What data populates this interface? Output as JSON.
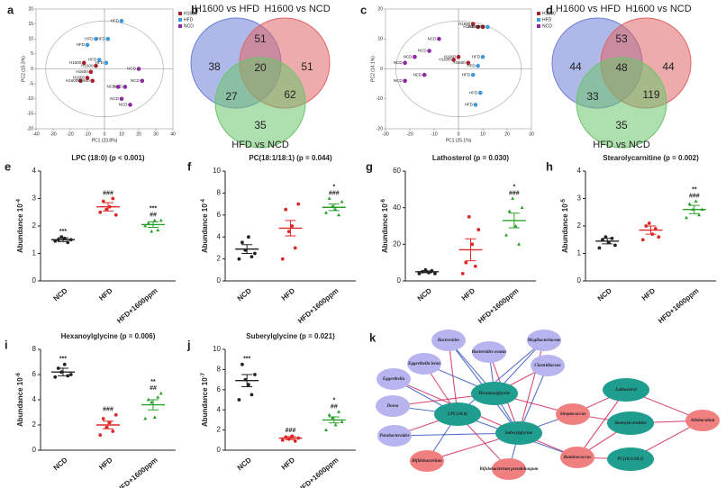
{
  "panel_labels": [
    "a",
    "b",
    "c",
    "d",
    "e",
    "f",
    "g",
    "h",
    "i",
    "j",
    "k"
  ],
  "chart_data": [
    {
      "type": "scatter",
      "xlabel": "PC1 (23.8%)",
      "ylabel": "PC2 (15.3%)",
      "xlim": [
        -40,
        40
      ],
      "ylim": [
        -20,
        20
      ],
      "xticks": [
        -40,
        -30,
        -20,
        -10,
        0,
        10,
        20,
        30,
        40
      ],
      "yticks": [
        -20,
        -15,
        -10,
        -5,
        0,
        5,
        10,
        15,
        20
      ],
      "series": [
        {
          "name": "H1600",
          "color": "#a8202a",
          "x": [
            -12,
            -8,
            -10,
            -14,
            -7,
            -5
          ],
          "values": [
            2,
            -1,
            -3,
            -4,
            -4,
            1
          ]
        },
        {
          "name": "HFD",
          "color": "#3b9ad9",
          "x": [
            -10,
            -5,
            2,
            10,
            -3,
            1
          ],
          "values": [
            8,
            10,
            10,
            16,
            3,
            2
          ]
        },
        {
          "name": "NCD",
          "color": "#8a2a9e",
          "x": [
            20,
            22,
            12,
            8,
            10,
            15
          ],
          "values": [
            0,
            -4,
            -6,
            -6,
            -10,
            -12
          ]
        }
      ]
    },
    {
      "type": "scatter",
      "xlabel": "PC1 (25.1%)",
      "ylabel": "PC2 (14.1%)",
      "xlim": [
        -30,
        30
      ],
      "ylim": [
        -20,
        20
      ],
      "xticks": [
        -30,
        -20,
        -10,
        0,
        10,
        20,
        30
      ],
      "yticks": [
        -20,
        -10,
        0,
        10,
        20
      ],
      "series": [
        {
          "name": "H1600",
          "color": "#a8202a",
          "x": [
            6,
            8,
            10,
            0,
            -2,
            4
          ],
          "values": [
            15,
            14,
            14,
            4,
            3,
            2
          ]
        },
        {
          "name": "HFD",
          "color": "#3b9ad9",
          "x": [
            12,
            10,
            8,
            6,
            9,
            7
          ],
          "values": [
            14,
            4,
            1,
            -2,
            -8,
            -12
          ]
        },
        {
          "name": "NCD",
          "color": "#8a2a9e",
          "x": [
            -8,
            -12,
            -18,
            -22,
            -14,
            -22
          ],
          "values": [
            10,
            6,
            4,
            2,
            -2,
            -4
          ]
        }
      ]
    },
    {
      "type": "dot",
      "title": "LPC (18:0) (p < 0.001)",
      "ylabel": "Abundance 10",
      "ylabel_exp": "-4",
      "categories": [
        "NCD",
        "HFD",
        "HFD+1600ppm"
      ],
      "colors": [
        "#222222",
        "#e02828",
        "#2ca02c"
      ],
      "ylim": [
        0,
        4
      ],
      "yticks": [
        0,
        1,
        2,
        3,
        4
      ],
      "means": [
        1.5,
        2.7,
        2.05
      ],
      "errors": [
        0.07,
        0.15,
        0.1
      ],
      "points": [
        [
          1.45,
          1.5,
          1.6,
          1.55,
          1.4,
          1.5
        ],
        [
          2.5,
          2.9,
          2.6,
          2.7,
          3.0,
          2.4
        ],
        [
          2.0,
          2.1,
          1.8,
          2.2,
          1.85,
          2.2
        ]
      ],
      "annotations": [
        [
          {
            "text": "***",
            "color": "#e02828"
          }
        ],
        [
          {
            "text": "###",
            "color": "#222222"
          }
        ],
        [
          {
            "text": "***",
            "color": "#e02828"
          },
          {
            "text": "##",
            "color": "#222222"
          }
        ]
      ]
    },
    {
      "type": "dot",
      "title": "PC(18:1/18:1) (p = 0.044)",
      "ylabel": "Abundance 10",
      "ylabel_exp": "-4",
      "categories": [
        "NCD",
        "HFD",
        "HFD+1600ppm"
      ],
      "colors": [
        "#222222",
        "#e02828",
        "#2ca02c"
      ],
      "ylim": [
        0,
        10
      ],
      "yticks": [
        0,
        2,
        4,
        6,
        8,
        10
      ],
      "means": [
        2.9,
        4.8,
        6.7
      ],
      "errors": [
        0.4,
        0.7,
        0.3
      ],
      "points": [
        [
          2.0,
          3.5,
          2.8,
          4.0,
          2.2,
          2.5
        ],
        [
          2.0,
          6.5,
          4.5,
          5.0,
          3.0,
          7.0
        ],
        [
          6.2,
          7.5,
          6.8,
          6.5,
          6.0,
          7.2
        ]
      ],
      "annotations": [
        [],
        [],
        [
          {
            "text": "*",
            "color": "#e02828"
          },
          {
            "text": "###",
            "color": "#222222"
          }
        ]
      ]
    },
    {
      "type": "dot",
      "title": "Lathosterol (p = 0.030)",
      "ylabel": "Abundance 10",
      "ylabel_exp": "-6",
      "categories": [
        "NCD",
        "HFD",
        "HFD+1600ppm"
      ],
      "colors": [
        "#222222",
        "#e02828",
        "#2ca02c"
      ],
      "ylim": [
        0,
        60
      ],
      "yticks": [
        0,
        20,
        40,
        60
      ],
      "means": [
        5,
        17,
        33
      ],
      "errors": [
        0.5,
        6,
        4
      ],
      "points": [
        [
          4,
          5,
          6,
          4.5,
          5.5,
          4
        ],
        [
          4,
          10,
          35,
          20,
          8,
          28
        ],
        [
          25,
          38,
          45,
          30,
          20,
          40
        ]
      ],
      "annotations": [
        [],
        [],
        [
          {
            "text": "*",
            "color": "#e02828"
          },
          {
            "text": "###",
            "color": "#222222"
          }
        ]
      ]
    },
    {
      "type": "dot",
      "title": "Stearolycarnitine (p = 0.002)",
      "ylabel": "Abundance 10",
      "ylabel_exp": "-5",
      "categories": [
        "NCD",
        "HFD",
        "HFD+1600ppm"
      ],
      "colors": [
        "#222222",
        "#e02828",
        "#2ca02c"
      ],
      "ylim": [
        0,
        4
      ],
      "yticks": [
        0,
        1,
        2,
        3,
        4
      ],
      "means": [
        1.45,
        1.85,
        2.6
      ],
      "errors": [
        0.1,
        0.15,
        0.15
      ],
      "points": [
        [
          1.2,
          1.5,
          1.6,
          1.4,
          1.55,
          1.3
        ],
        [
          1.5,
          2.0,
          2.1,
          1.7,
          1.9,
          1.6
        ],
        [
          2.3,
          2.8,
          2.6,
          2.9,
          2.4,
          2.6
        ]
      ],
      "annotations": [
        [],
        [],
        [
          {
            "text": "**",
            "color": "#e02828"
          },
          {
            "text": "###",
            "color": "#222222"
          }
        ]
      ]
    },
    {
      "type": "dot",
      "title": "Hexanoylglycine (p = 0.006)",
      "ylabel": "Abundance 10",
      "ylabel_exp": "-6",
      "categories": [
        "NCD",
        "HFD",
        "HFD+1600ppm"
      ],
      "colors": [
        "#222222",
        "#e02828",
        "#2ca02c"
      ],
      "ylim": [
        0,
        8
      ],
      "yticks": [
        0,
        2,
        4,
        6,
        8
      ],
      "means": [
        6.2,
        2.0,
        3.6
      ],
      "errors": [
        0.3,
        0.3,
        0.4
      ],
      "points": [
        [
          5.8,
          6.5,
          6.2,
          6.8,
          5.9,
          6.0
        ],
        [
          1.2,
          2.5,
          1.8,
          2.2,
          1.5,
          2.8
        ],
        [
          2.5,
          4.0,
          3.8,
          2.6,
          4.2,
          4.5
        ]
      ],
      "annotations": [
        [
          {
            "text": "***",
            "color": "#e02828"
          }
        ],
        [
          {
            "text": "###",
            "color": "#222222"
          }
        ],
        [
          {
            "text": "**",
            "color": "#e02828"
          },
          {
            "text": "##",
            "color": "#222222"
          }
        ]
      ]
    },
    {
      "type": "dot",
      "title": "Suberylglycine (p = 0.021)",
      "ylabel": "Abundance 10",
      "ylabel_exp": "-7",
      "categories": [
        "NCD",
        "HFD",
        "HFD+1600ppm"
      ],
      "colors": [
        "#222222",
        "#e02828",
        "#2ca02c"
      ],
      "ylim": [
        0,
        10
      ],
      "yticks": [
        0,
        2,
        4,
        6,
        8,
        10
      ],
      "means": [
        6.9,
        1.2,
        3.0
      ],
      "errors": [
        0.6,
        0.15,
        0.3
      ],
      "points": [
        [
          5.0,
          8.5,
          7.0,
          6.5,
          5.5,
          7.5
        ],
        [
          1.0,
          1.3,
          1.1,
          1.4,
          0.9,
          1.2
        ],
        [
          2.0,
          3.5,
          3.2,
          2.5,
          3.8,
          2.8
        ]
      ],
      "annotations": [
        [
          {
            "text": "***",
            "color": "#e02828"
          }
        ],
        [
          {
            "text": "###",
            "color": "#222222"
          }
        ],
        [
          {
            "text": "*",
            "color": "#e02828"
          },
          {
            "text": "##",
            "color": "#222222"
          }
        ]
      ]
    }
  ],
  "venns": [
    {
      "sets": [
        "H1600 vs HFD",
        "H1600 vs NCD",
        "HFD vs NCD"
      ],
      "regions": [
        38,
        51,
        51,
        20,
        27,
        62,
        35
      ]
    },
    {
      "sets": [
        "H1600 vs HFD",
        "H1600 vs NCD",
        "HFD vs NCD"
      ],
      "regions": [
        44,
        53,
        44,
        48,
        33,
        119,
        35
      ]
    }
  ],
  "network": {
    "nodes": [
      {
        "label": "Bacteroides",
        "color": "#b7b4f0"
      },
      {
        "label": "Bacteroides ovatus",
        "color": "#b7b4f0"
      },
      {
        "label": "Mogibacteriaceae",
        "color": "#b7b4f0"
      },
      {
        "label": "Eggerthella lenta",
        "color": "#b7b4f0"
      },
      {
        "label": "Clostridiaceae",
        "color": "#b7b4f0"
      },
      {
        "label": "Eggerthella",
        "color": "#b7b4f0"
      },
      {
        "label": "Dorea",
        "color": "#b7b4f0"
      },
      {
        "label": "Parabacteroides",
        "color": "#b7b4f0"
      },
      {
        "label": "Bifidobacterium",
        "color": "#f08080"
      },
      {
        "label": "Bifidobacterium pseudolongum",
        "color": "#f08080"
      },
      {
        "label": "Hexanoylglycine",
        "color": "#1f9e8f"
      },
      {
        "label": "LPC(18:0)",
        "color": "#1f9e8f"
      },
      {
        "label": "Suberylglycine",
        "color": "#1f9e8f"
      },
      {
        "label": "Streptococcus",
        "color": "#f08080"
      },
      {
        "label": "Ruminococcus",
        "color": "#f08080"
      },
      {
        "label": "Lathosterol",
        "color": "#1f9e8f"
      },
      {
        "label": "Stearoylcarnitine",
        "color": "#1f9e8f"
      },
      {
        "label": "PC(18:1/18:1)",
        "color": "#1f9e8f"
      },
      {
        "label": "Allobaculum",
        "color": "#f08080"
      }
    ]
  }
}
